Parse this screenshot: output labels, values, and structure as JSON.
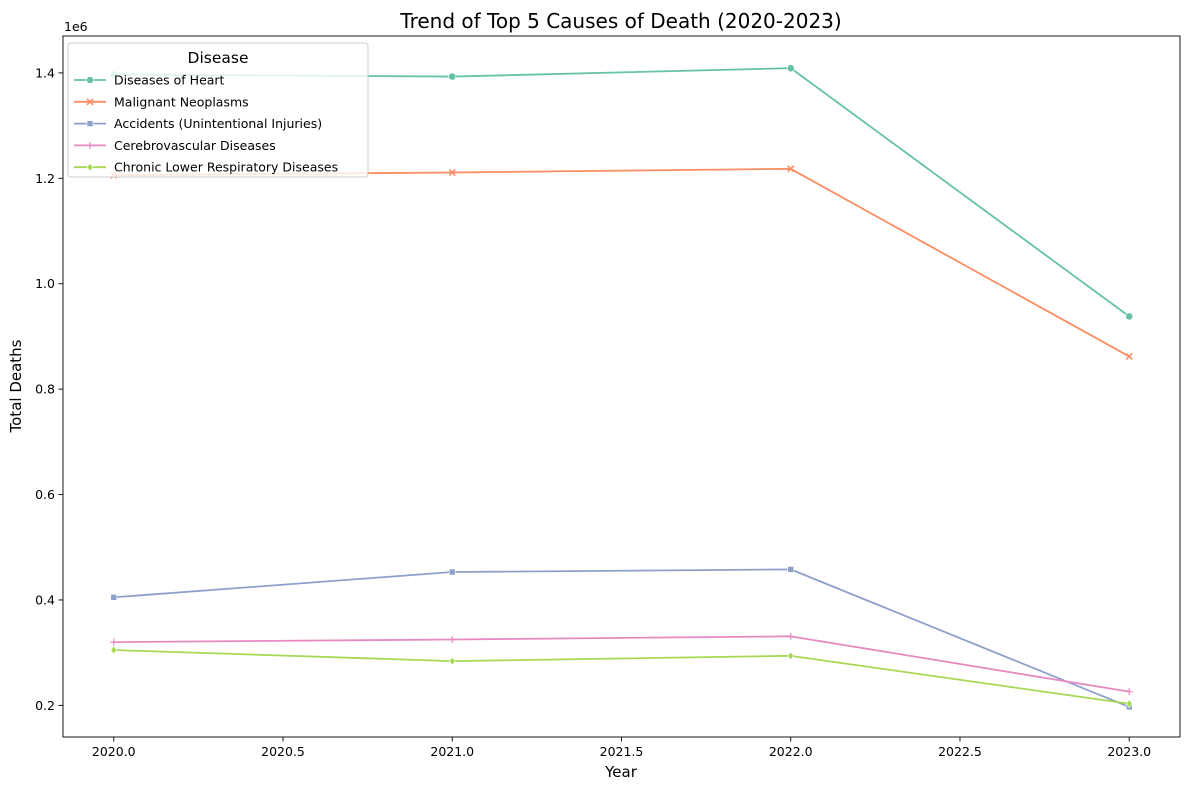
{
  "chart_data": {
    "type": "line",
    "title": "Trend of Top 5 Causes of Death (2020-2023)",
    "xlabel": "Year",
    "ylabel": "Total Deaths",
    "y_offset_label": "1e6",
    "xlim": [
      2019.85,
      2023.15
    ],
    "ylim": [
      0.14,
      1.47
    ],
    "x_ticks": [
      "2020.0",
      "2020.5",
      "2021.0",
      "2021.5",
      "2022.0",
      "2022.5",
      "2023.0"
    ],
    "y_ticks": [
      "0.2",
      "0.4",
      "0.6",
      "0.8",
      "1.0",
      "1.2",
      "1.4"
    ],
    "grid": false,
    "legend": {
      "title": "Disease",
      "position": "top-left"
    },
    "x": [
      2020,
      2021,
      2022,
      2023
    ],
    "series": [
      {
        "name": "Diseases of Heart",
        "color": "#66c2a5",
        "marker": "circle",
        "values": [
          1.397,
          1.393,
          1.409,
          0.938
        ]
      },
      {
        "name": "Malignant Neoplasms",
        "color": "#fc8d62",
        "marker": "x",
        "values": [
          1.206,
          1.211,
          1.218,
          0.862
        ]
      },
      {
        "name": "Accidents (Unintentional Injuries)",
        "color": "#8da0cb",
        "marker": "square",
        "values": [
          0.405,
          0.453,
          0.458,
          0.197
        ]
      },
      {
        "name": "Cerebrovascular Diseases",
        "color": "#e78ac3",
        "marker": "plus",
        "values": [
          0.32,
          0.325,
          0.331,
          0.226
        ]
      },
      {
        "name": "Chronic Lower Respiratory Diseases",
        "color": "#a6d854",
        "marker": "diamond",
        "values": [
          0.305,
          0.284,
          0.294,
          0.203
        ]
      }
    ]
  }
}
